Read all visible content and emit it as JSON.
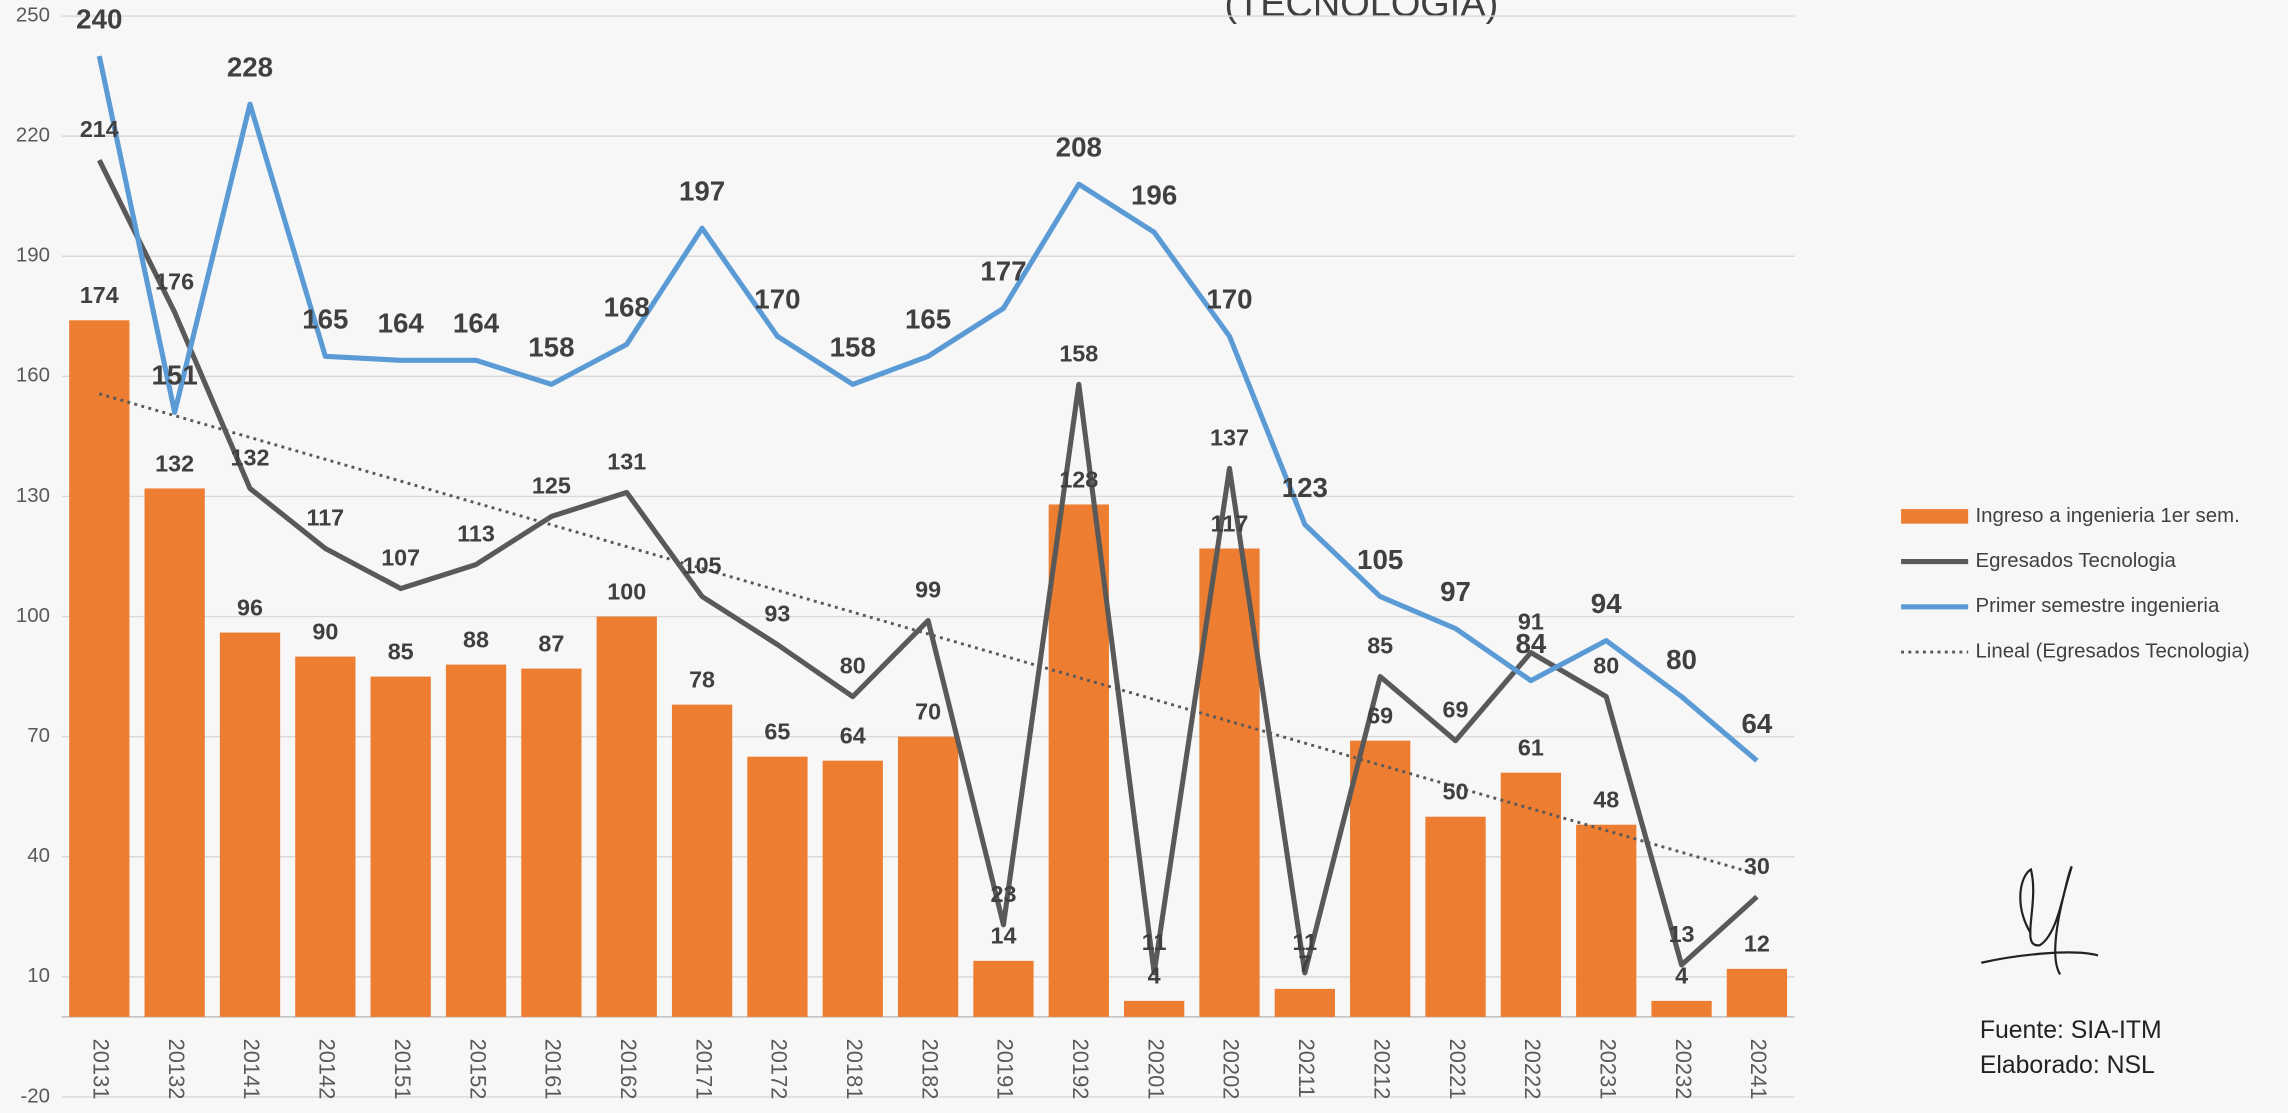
{
  "chart_data": {
    "type": "combo",
    "title": "(TECNOLOGIA)",
    "categories": [
      "20131",
      "20132",
      "20141",
      "20142",
      "20151",
      "20152",
      "20161",
      "20162",
      "20171",
      "20172",
      "20181",
      "20182",
      "20191",
      "20192",
      "20201",
      "20202",
      "20211",
      "20212",
      "20221",
      "20222",
      "20231",
      "20232",
      "20241"
    ],
    "series": [
      {
        "name": "Ingreso a ingenieria 1er sem.",
        "type": "bar",
        "color": "#ed7d31",
        "values": [
          174,
          132,
          96,
          90,
          85,
          88,
          87,
          100,
          78,
          65,
          64,
          70,
          14,
          128,
          4,
          117,
          7,
          69,
          50,
          61,
          48,
          4,
          12
        ]
      },
      {
        "name": "Egresados Tecnologia",
        "type": "line",
        "color": "#595959",
        "values": [
          214,
          176,
          132,
          117,
          107,
          113,
          125,
          131,
          105,
          93,
          80,
          99,
          23,
          158,
          11,
          137,
          11,
          85,
          69,
          91,
          80,
          13,
          30
        ]
      },
      {
        "name": "Primer semestre ingenieria",
        "type": "line",
        "color": "#5b9bd5",
        "values": [
          240,
          151,
          228,
          165,
          164,
          164,
          158,
          168,
          197,
          170,
          158,
          165,
          177,
          208,
          196,
          170,
          123,
          105,
          97,
          84,
          94,
          80,
          64
        ]
      }
    ],
    "trendline": {
      "name": "Lineal (Egresados Tecnologia)",
      "color": "#595959",
      "style": "dotted"
    },
    "ylim": [
      -20,
      250
    ],
    "yticks": [
      -20,
      10,
      40,
      70,
      100,
      130,
      160,
      190,
      220,
      250
    ],
    "grid": true,
    "legend": "right",
    "notes": [
      "Fuente: SIA-ITM",
      "Elaborado: NSL"
    ]
  }
}
